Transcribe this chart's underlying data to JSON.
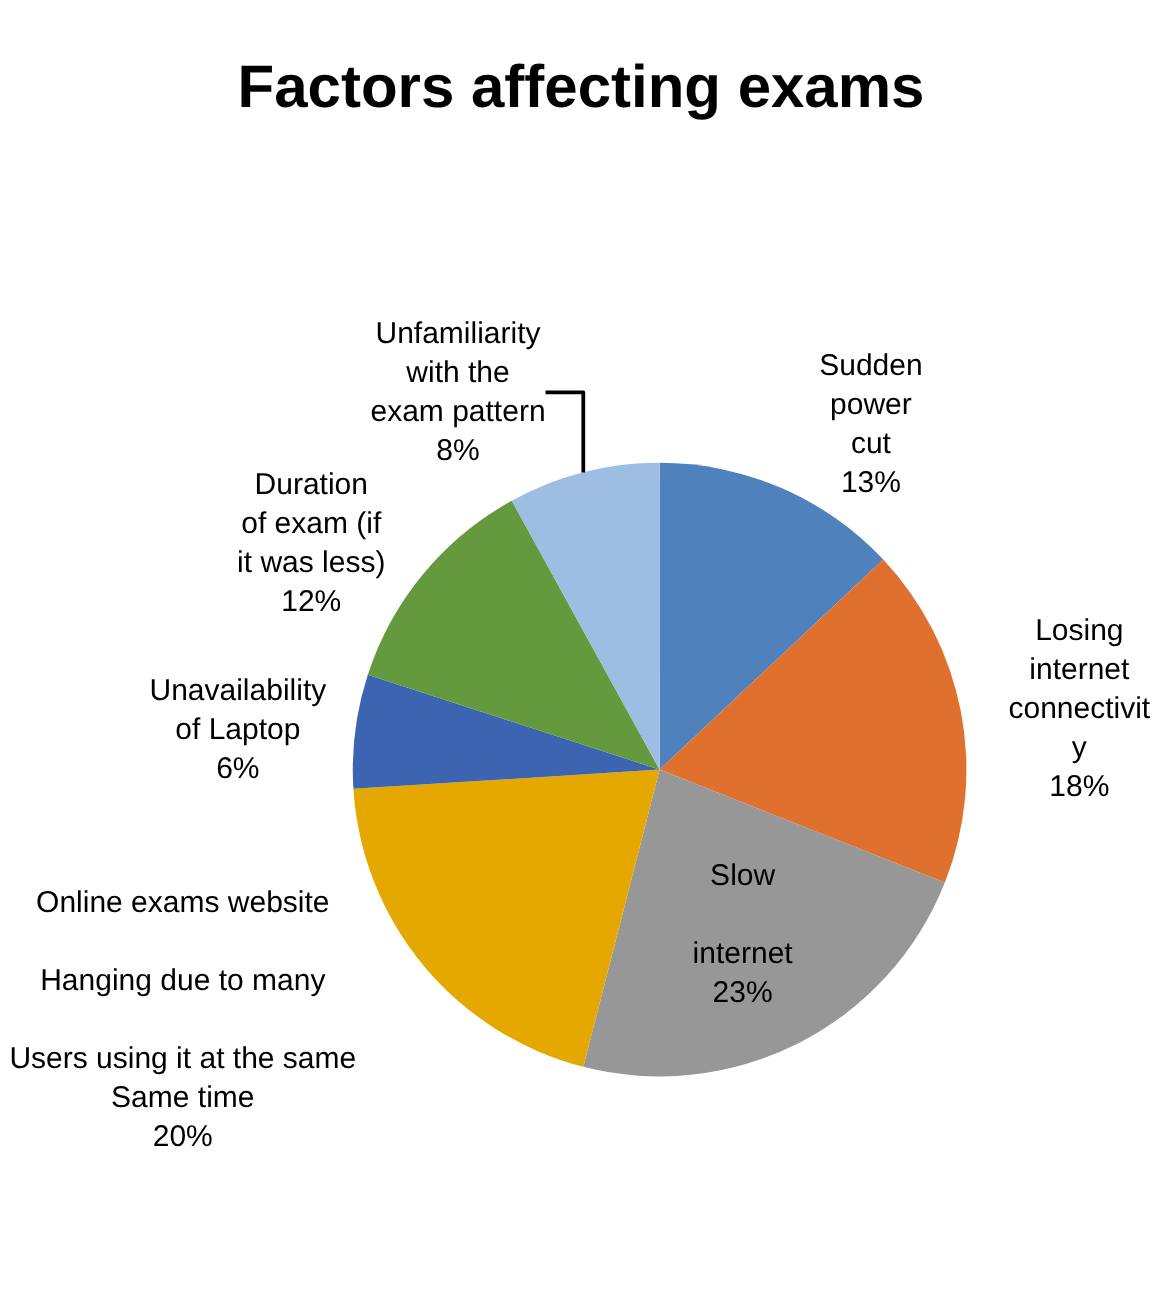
{
  "chart_data": {
    "type": "pie",
    "title": "Factors affecting exams",
    "categories": [
      "Sudden\npower\ncut",
      "Losing\ninternet\nconnectivit\ny",
      "Slow\n\ninternet",
      "Online exams website\n\nHanging due to many\n\nUsers using it at the same\nSame time",
      "Unavailability\nof Laptop",
      "Duration\nof exam (if\nit was less)",
      "Unfamiliarity\nwith the\nexam pattern"
    ],
    "values": [
      13,
      18,
      23,
      20,
      6,
      12,
      8
    ],
    "value_labels": [
      "13%",
      "18%",
      "23%",
      "20%",
      "6%",
      "12%",
      "8%"
    ],
    "colors": [
      "#4f81bd",
      "#e0702e",
      "#979797",
      "#e5a800",
      "#3c64b1",
      "#64993d",
      "#9dbde2"
    ],
    "legend": false
  }
}
